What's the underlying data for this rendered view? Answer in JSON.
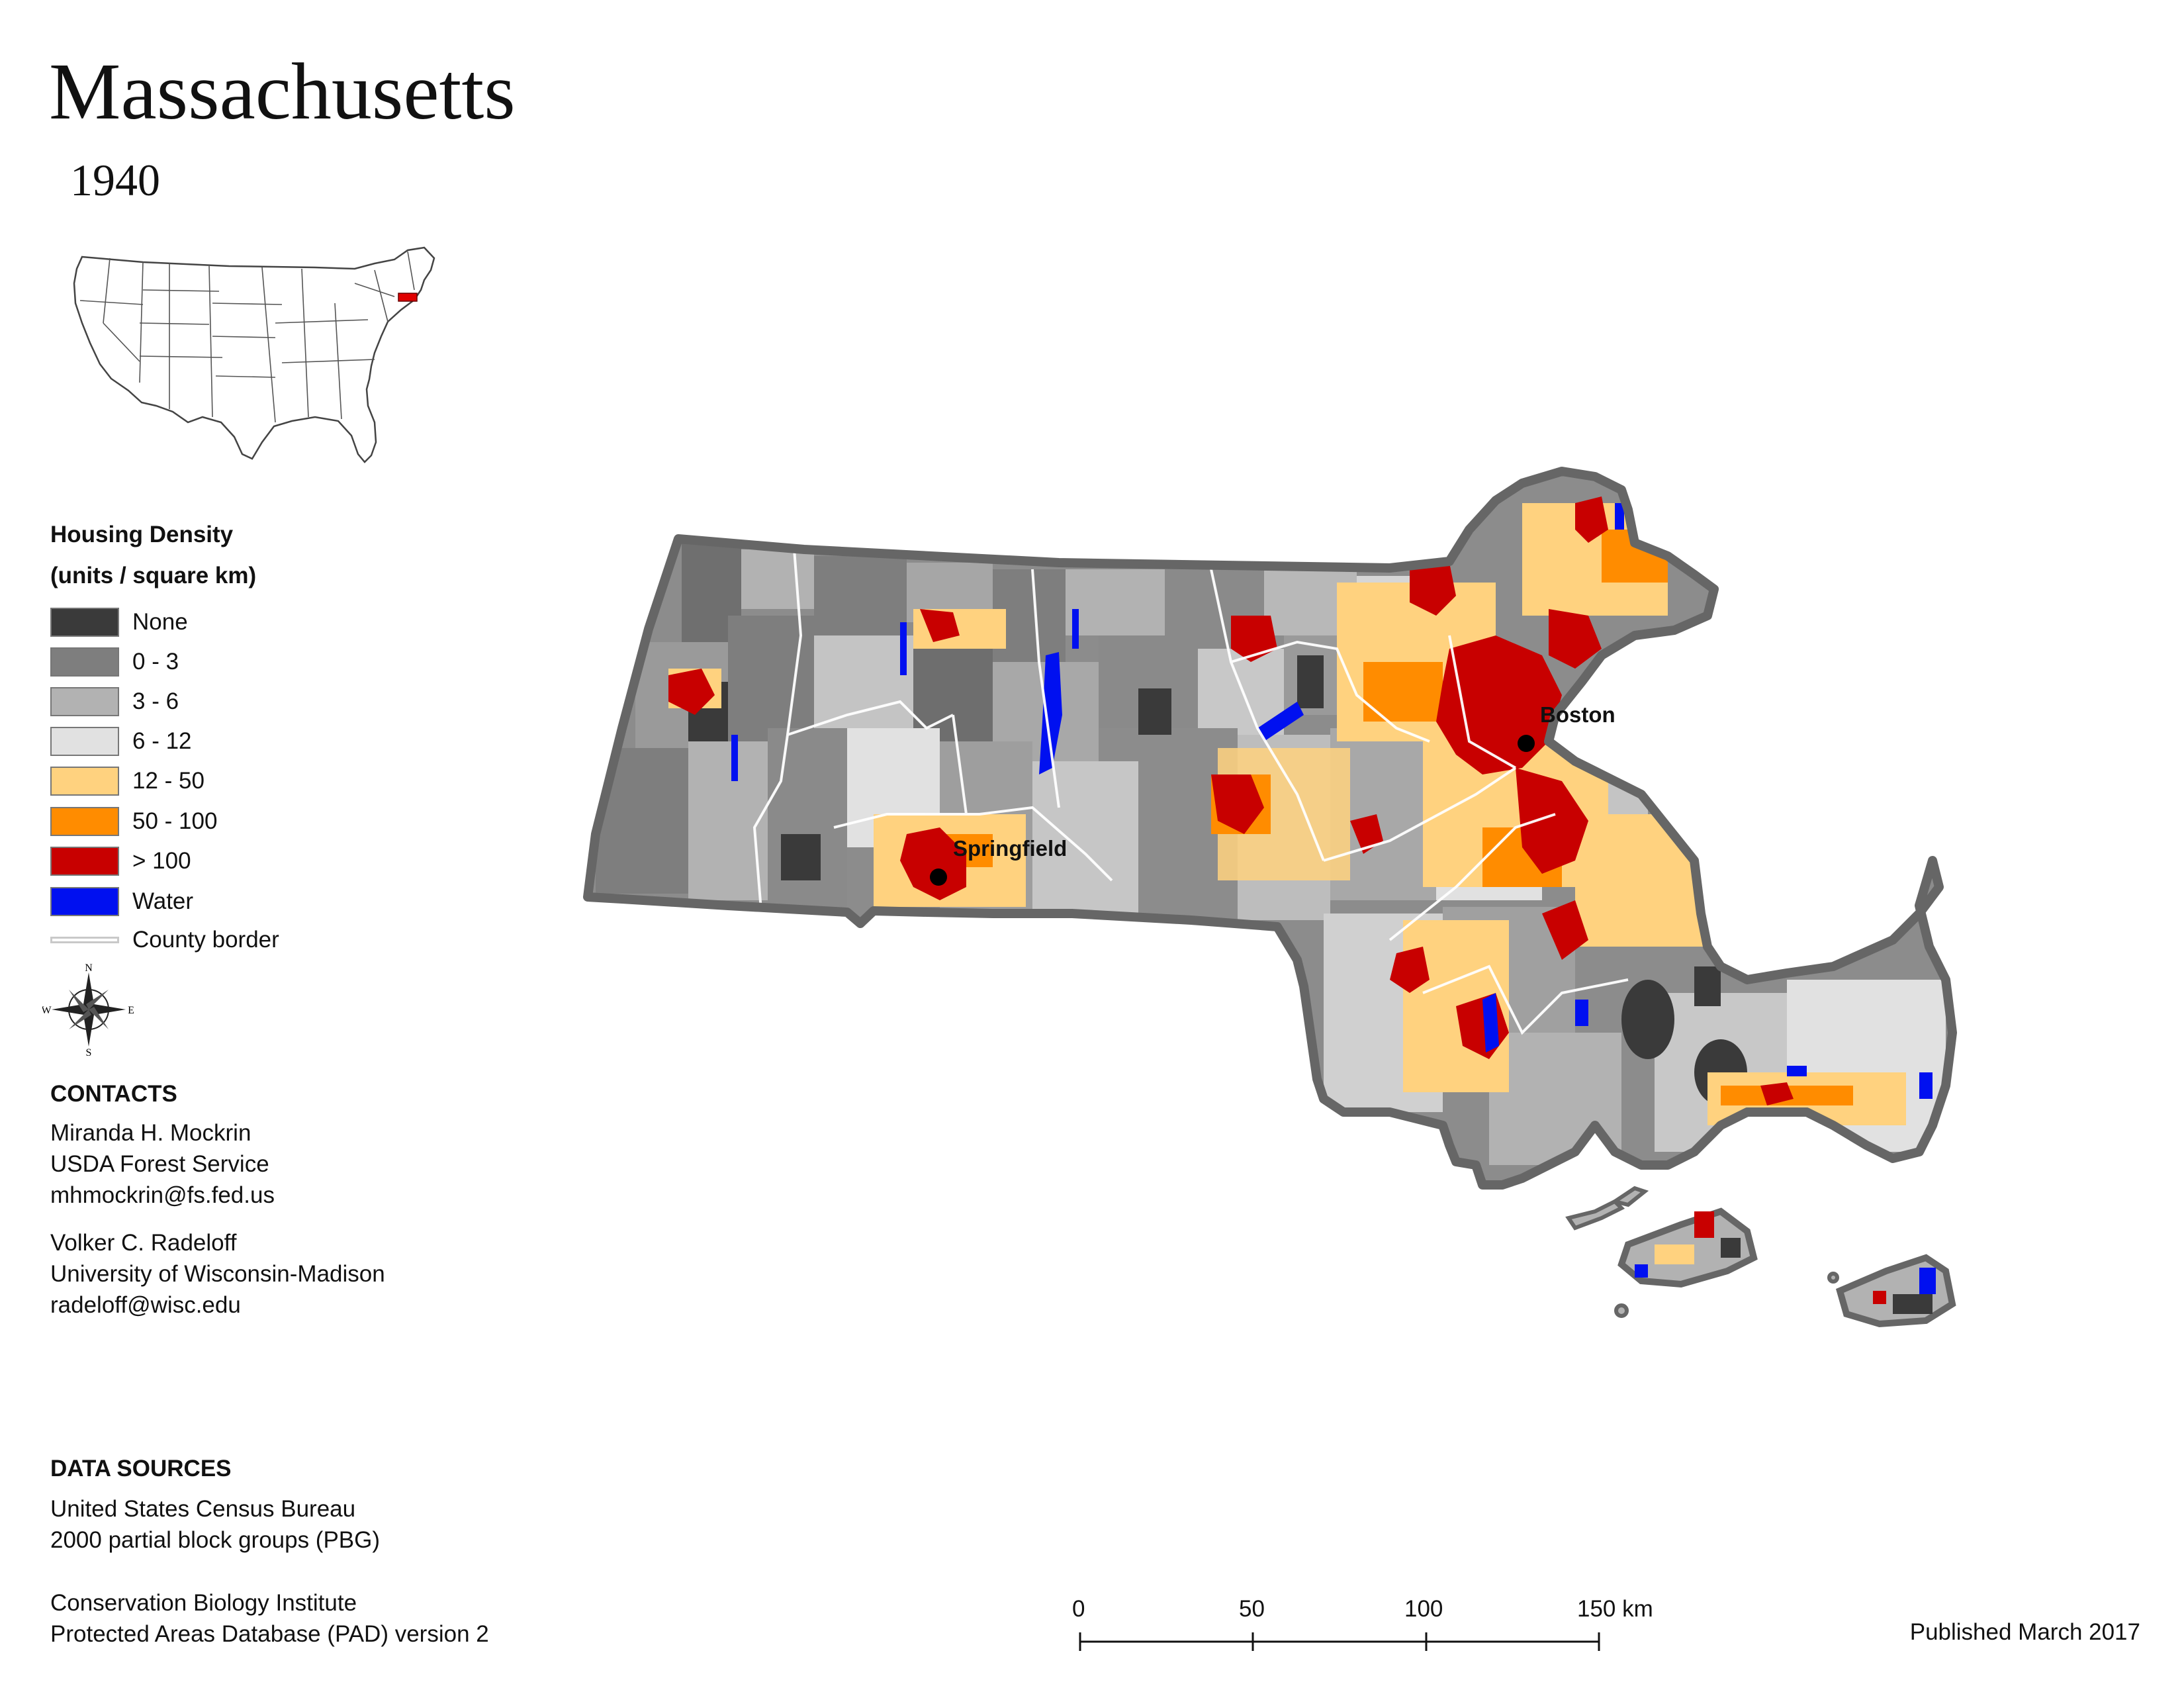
{
  "title": "Massachusetts",
  "year": "1940",
  "legend": {
    "title": "Housing Density",
    "units": "(units / square km)",
    "items": [
      {
        "label": "None",
        "color": "#3a3a3a"
      },
      {
        "label": "0 - 3",
        "color": "#7e7e7e"
      },
      {
        "label": "3 - 6",
        "color": "#b2b2b2"
      },
      {
        "label": "6 - 12",
        "color": "#e1e1e1"
      },
      {
        "label": "12 - 50",
        "color": "#ffd27f"
      },
      {
        "label": "50 - 100",
        "color": "#ff8c00"
      },
      {
        "label": "> 100",
        "color": "#c80000"
      },
      {
        "label": "Water",
        "color": "#0010f0"
      }
    ],
    "county_border": "County border"
  },
  "compass": {
    "n": "N",
    "s": "S",
    "e": "E",
    "w": "W"
  },
  "contacts": {
    "heading": "CONTACTS",
    "people": [
      {
        "name": "Miranda H. Mockrin",
        "org": "USDA Forest Service",
        "email": "mhmockrin@fs.fed.us"
      },
      {
        "name": "Volker C. Radeloff",
        "org": "University of Wisconsin-Madison",
        "email": "radeloff@wisc.edu"
      }
    ]
  },
  "data_sources": {
    "heading": "DATA SOURCES",
    "lines_a": [
      "United States Census Bureau",
      "2000 partial block groups (PBG)"
    ],
    "lines_b": [
      "Conservation Biology Institute",
      "Protected Areas Database (PAD) version 2"
    ]
  },
  "scale_bar": {
    "ticks": [
      "0",
      "50",
      "100",
      "150 km"
    ]
  },
  "cities": {
    "boston": "Boston",
    "springfield": "Springfield"
  },
  "published": "Published March 2017"
}
